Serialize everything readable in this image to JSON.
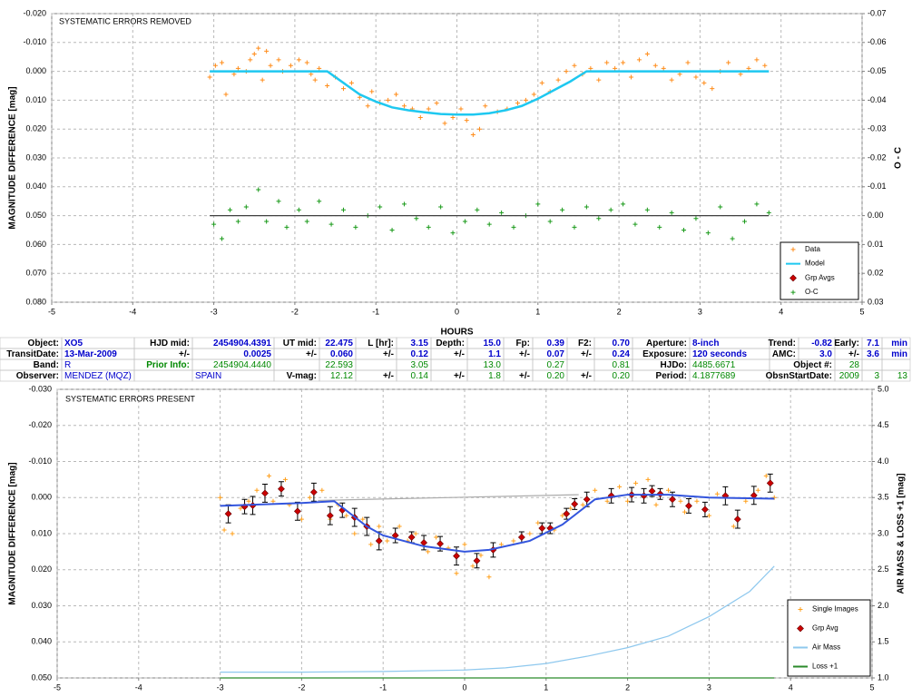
{
  "chart_data": [
    {
      "type": "scatter",
      "annotation": "SYSTEMATIC ERRORS REMOVED",
      "xlabel": "HOURS",
      "ylabel": "MAGNITUDE DIFFERENCE [mag]",
      "y2label": "O - C",
      "xlim": [
        -5,
        5
      ],
      "xticks": [
        -5,
        -4,
        -3,
        -2,
        -1,
        0,
        1,
        2,
        3,
        4,
        5
      ],
      "ylim": [
        -0.02,
        0.08
      ],
      "y_reversed": true,
      "yticks": [
        {
          "value": -0.02,
          "label": "-0.020"
        },
        {
          "value": -0.01,
          "label": "-0.010"
        },
        {
          "value": 0,
          "label": "0.000"
        },
        {
          "value": 0.01,
          "label": "0.010"
        },
        {
          "value": 0.02,
          "label": "0.020"
        },
        {
          "value": 0.03,
          "label": "0.030"
        },
        {
          "value": 0.04,
          "label": "0.040"
        },
        {
          "value": 0.05,
          "label": "0.050"
        },
        {
          "value": 0.06,
          "label": "0.060"
        },
        {
          "value": 0.07,
          "label": "0.070"
        },
        {
          "value": 0.08,
          "label": "0.080"
        }
      ],
      "y2lim": [
        -0.07,
        0.03
      ],
      "y2_reversed": true,
      "y2ticks": [
        -0.07,
        -0.06,
        -0.05,
        -0.04,
        -0.03,
        -0.02,
        -0.01,
        {
          "value": 0,
          "label": "0.00"
        },
        0.01,
        0.02,
        0.03
      ],
      "grid": true,
      "legend": "lower right",
      "series": [
        {
          "name": "Data",
          "color": "#ff8c1a",
          "marker": "plus",
          "x": [
            -3.05,
            -2.98,
            -2.9,
            -2.85,
            -2.75,
            -2.7,
            -2.6,
            -2.55,
            -2.5,
            -2.45,
            -2.4,
            -2.35,
            -2.3,
            -2.2,
            -2.15,
            -2.05,
            -1.95,
            -1.85,
            -1.8,
            -1.75,
            -1.7,
            -1.6,
            -1.5,
            -1.4,
            -1.3,
            -1.2,
            -1.1,
            -1.05,
            -0.95,
            -0.85,
            -0.75,
            -0.65,
            -0.55,
            -0.45,
            -0.35,
            -0.25,
            -0.15,
            -0.05,
            0.05,
            0.12,
            0.2,
            0.28,
            0.35,
            0.5,
            0.62,
            0.75,
            0.85,
            0.95,
            1.05,
            1.15,
            1.25,
            1.35,
            1.45,
            1.55,
            1.65,
            1.75,
            1.85,
            1.95,
            2.05,
            2.15,
            2.25,
            2.35,
            2.45,
            2.55,
            2.65,
            2.75,
            2.85,
            2.95,
            3.05,
            3.15,
            3.25,
            3.35,
            3.5,
            3.6,
            3.7,
            3.8
          ],
          "values": [
            0.002,
            -0.002,
            -0.003,
            0.008,
            0.001,
            -0.001,
            0.0,
            -0.004,
            -0.006,
            -0.008,
            0.003,
            -0.007,
            -0.002,
            -0.004,
            0.0,
            -0.002,
            -0.004,
            -0.003,
            0.001,
            0.003,
            -0.001,
            0.005,
            0.002,
            0.006,
            0.004,
            0.009,
            0.012,
            0.007,
            0.011,
            0.01,
            0.008,
            0.012,
            0.013,
            0.016,
            0.013,
            0.011,
            0.018,
            0.016,
            0.013,
            0.017,
            0.022,
            0.02,
            0.012,
            0.014,
            0.013,
            0.011,
            0.01,
            0.008,
            0.004,
            0.007,
            0.003,
            0.0,
            -0.002,
            0.001,
            -0.001,
            0.003,
            -0.003,
            -0.001,
            -0.003,
            0.002,
            -0.004,
            -0.006,
            -0.002,
            -0.001,
            0.003,
            0.001,
            -0.003,
            0.002,
            0.004,
            0.006,
            0.0,
            -0.003,
            0.001,
            -0.001,
            -0.004,
            -0.002
          ]
        },
        {
          "name": "Model",
          "color": "#1ec8f0",
          "marker": "line",
          "x": [
            -3.05,
            -1.6,
            -1.4,
            -1.2,
            -1.0,
            -0.8,
            -0.6,
            -0.4,
            -0.2,
            0.0,
            0.2,
            0.4,
            0.6,
            0.8,
            1.0,
            1.2,
            1.4,
            1.6,
            3.85
          ],
          "values": [
            0,
            0,
            0.004,
            0.008,
            0.0105,
            0.0125,
            0.0135,
            0.0142,
            0.0148,
            0.015,
            0.015,
            0.0145,
            0.0135,
            0.012,
            0.0095,
            0.0065,
            0.0035,
            0,
            0
          ]
        },
        {
          "name": "Grp Avgs",
          "color": "#cc0000",
          "marker": "diamond",
          "x": [],
          "values": []
        },
        {
          "name": "O-C",
          "color": "#1a9a1a",
          "marker": "plus",
          "axis": "y2",
          "x": [
            -3.0,
            -2.9,
            -2.8,
            -2.7,
            -2.6,
            -2.45,
            -2.35,
            -2.2,
            -2.1,
            -1.95,
            -1.85,
            -1.7,
            -1.55,
            -1.4,
            -1.25,
            -1.1,
            -0.95,
            -0.8,
            -0.65,
            -0.5,
            -0.35,
            -0.2,
            -0.05,
            0.1,
            0.25,
            0.4,
            0.55,
            0.7,
            0.85,
            1.0,
            1.15,
            1.3,
            1.45,
            1.6,
            1.75,
            1.9,
            2.05,
            2.2,
            2.35,
            2.5,
            2.65,
            2.8,
            2.95,
            3.1,
            3.25,
            3.4,
            3.55,
            3.7,
            3.85
          ],
          "values": [
            0.003,
            0.008,
            -0.002,
            0.002,
            -0.003,
            -0.009,
            0.002,
            -0.005,
            0.004,
            -0.002,
            0.002,
            -0.005,
            0.003,
            -0.002,
            0.004,
            0.0,
            -0.003,
            0.005,
            -0.004,
            0.001,
            0.004,
            -0.003,
            0.006,
            0.002,
            -0.002,
            0.003,
            -0.001,
            0.004,
            0.0,
            -0.004,
            0.002,
            -0.002,
            0.004,
            -0.003,
            0.001,
            -0.002,
            -0.004,
            0.003,
            -0.002,
            0.004,
            -0.001,
            0.005,
            0.001,
            0.006,
            -0.003,
            0.008,
            0.002,
            -0.004,
            -0.001
          ]
        },
        {
          "color": "#404040",
          "marker": "line",
          "axis": "y2",
          "x": [
            -3.05,
            3.85
          ],
          "values": [
            0,
            0
          ]
        }
      ]
    },
    {
      "type": "scatter",
      "annotation": "SYSTEMATIC ERRORS PRESENT",
      "ylabel": "MAGNITUDE DIFFERENCE [mag]",
      "y2label": "AIR MASS & LOSS +1 [mag]",
      "xlim": [
        -5,
        5
      ],
      "xticks": [
        -5,
        -4,
        -3,
        -2,
        -1,
        0,
        1,
        2,
        3,
        4,
        5
      ],
      "ylim": [
        -0.03,
        0.05
      ],
      "y_reversed": true,
      "yticks": [
        {
          "value": -0.03,
          "label": "-0.030"
        },
        {
          "value": -0.02,
          "label": "-0.020"
        },
        {
          "value": -0.01,
          "label": "-0.010"
        },
        {
          "value": 0,
          "label": "0.000"
        },
        {
          "value": 0.01,
          "label": "0.010"
        },
        {
          "value": 0.02,
          "label": "0.020"
        },
        {
          "value": 0.03,
          "label": "0.030"
        },
        {
          "value": 0.04,
          "label": "0.040"
        },
        {
          "value": 0.05,
          "label": "0.050"
        }
      ],
      "y2lim": [
        1,
        5
      ],
      "y2ticks": [
        {
          "value": 1,
          "label": "1.0"
        },
        1.5,
        {
          "value": 2,
          "label": "2.0"
        },
        2.5,
        {
          "value": 3,
          "label": "3.0"
        },
        3.5,
        {
          "value": 4,
          "label": "4.0"
        },
        4.5,
        {
          "value": 5,
          "label": "5.0"
        }
      ],
      "grid": true,
      "legend": "lower right",
      "series": [
        {
          "name": "Single Images",
          "color": "#ff9f1a",
          "marker": "plus",
          "x": [
            -3.0,
            -2.95,
            -2.85,
            -2.75,
            -2.65,
            -2.55,
            -2.4,
            -2.35,
            -2.2,
            -2.15,
            -2.0,
            -1.9,
            -1.75,
            -1.65,
            -1.55,
            -1.45,
            -1.35,
            -1.25,
            -1.15,
            -1.05,
            -0.95,
            -0.8,
            -0.7,
            -0.6,
            -0.45,
            -0.35,
            -0.2,
            -0.1,
            0.0,
            0.1,
            0.2,
            0.3,
            0.45,
            0.6,
            0.8,
            0.9,
            1.1,
            1.2,
            1.3,
            1.45,
            1.6,
            1.75,
            1.9,
            2.0,
            2.1,
            2.25,
            2.35,
            2.5,
            2.65,
            2.7,
            2.85,
            3.0,
            3.1,
            3.3,
            3.45,
            3.6,
            3.7,
            3.8
          ],
          "values": [
            0.0,
            0.009,
            0.01,
            0.003,
            0.001,
            -0.002,
            -0.006,
            0.001,
            -0.005,
            0.002,
            0.006,
            0.0,
            -0.002,
            0.006,
            0.002,
            0.005,
            0.01,
            0.006,
            0.013,
            0.008,
            0.012,
            0.008,
            0.012,
            0.01,
            0.015,
            0.011,
            0.014,
            0.021,
            0.013,
            0.019,
            0.016,
            0.022,
            0.013,
            0.012,
            0.01,
            0.007,
            0.009,
            0.005,
            0.003,
            0.002,
            -0.002,
            0.001,
            -0.003,
            0.001,
            -0.004,
            -0.005,
            0.002,
            -0.002,
            0.001,
            0.004,
            0.001,
            0.005,
            -0.001,
            0.008,
            0.001,
            -0.002,
            -0.006,
            0.0
          ]
        },
        {
          "name": "Grp Avg",
          "color": "#cc0000",
          "marker": "diamond",
          "x": [
            -2.9,
            -2.7,
            -2.6,
            -2.45,
            -2.25,
            -2.05,
            -1.85,
            -1.65,
            -1.5,
            -1.35,
            -1.2,
            -1.05,
            -0.85,
            -0.65,
            -0.5,
            -0.3,
            -0.1,
            0.15,
            0.35,
            0.7,
            0.95,
            1.05,
            1.25,
            1.35,
            1.5,
            1.8,
            2.05,
            2.2,
            2.3,
            2.4,
            2.55,
            2.75,
            2.95,
            3.2,
            3.35,
            3.55,
            3.75
          ],
          "values": [
            0.0045,
            0.0025,
            0.0022,
            -0.0012,
            -0.0024,
            0.0038,
            -0.0015,
            0.005,
            0.0035,
            0.0055,
            0.008,
            0.012,
            0.0105,
            0.011,
            0.0125,
            0.0128,
            0.0162,
            0.0175,
            0.0145,
            0.011,
            0.0085,
            0.0085,
            0.0045,
            0.0018,
            0.0005,
            -0.0005,
            -0.0008,
            -0.0005,
            -0.0018,
            -0.001,
            0.0005,
            0.0023,
            0.0033,
            -0.0005,
            0.006,
            -0.0006,
            -0.004
          ],
          "errors": [
            0.0025,
            0.002,
            0.0025,
            0.0025,
            0.002,
            0.0025,
            0.0025,
            0.0025,
            0.002,
            0.0025,
            0.0025,
            0.0025,
            0.002,
            0.0015,
            0.002,
            0.002,
            0.0025,
            0.002,
            0.002,
            0.0015,
            0.0015,
            0.0015,
            0.0015,
            0.0015,
            0.002,
            0.002,
            0.002,
            0.002,
            0.0015,
            0.0015,
            0.002,
            0.002,
            0.002,
            0.0025,
            0.0025,
            0.0025,
            0.0025
          ]
        },
        {
          "name": "Air Mass",
          "color": "#8ec8ee",
          "marker": "line",
          "axis": "y2",
          "x": [
            -3.0,
            -2.0,
            -1.0,
            0.0,
            0.5,
            1.0,
            1.5,
            2.0,
            2.5,
            3.0,
            3.5,
            3.8
          ],
          "values": [
            1.08,
            1.08,
            1.09,
            1.11,
            1.14,
            1.2,
            1.3,
            1.42,
            1.58,
            1.85,
            2.2,
            2.55
          ]
        },
        {
          "name": "Loss +1",
          "color": "#2a8a2a",
          "marker": "line",
          "axis": "y2",
          "x": [
            -3.0,
            3.8
          ],
          "values": [
            1,
            1
          ]
        },
        {
          "color": "#aaaaaa",
          "marker": "line",
          "x": [
            -1.8,
            1.4
          ],
          "values": [
            0.0008,
            -0.0008
          ]
        },
        {
          "color": "#3355dd",
          "marker": "line",
          "x": [
            -3.0,
            -2.0,
            -1.6,
            -1.2,
            -1.0,
            -0.5,
            0.0,
            0.3,
            0.8,
            1.2,
            1.6,
            2.0,
            2.5,
            3.0,
            3.8
          ],
          "values": [
            0.0023,
            0.0015,
            0.001,
            0.008,
            0.0105,
            0.0135,
            0.015,
            0.0145,
            0.012,
            0.0075,
            0.0005,
            -0.0008,
            -0.0008,
            0.0,
            0.0003
          ]
        }
      ]
    }
  ],
  "table": {
    "rows": [
      [
        "Object:",
        "XO5",
        "HJD mid:",
        "2454904.4391",
        "UT mid:",
        "22.475",
        "L [hr]:",
        "3.15",
        "Depth:",
        "15.0",
        "Fp:",
        "0.39",
        "F2:",
        "0.70",
        "Aperture:",
        "8-inch",
        "Trend:",
        "-0.82",
        "Early:",
        "7.1",
        "min"
      ],
      [
        "TransitDate:",
        "13-Mar-2009",
        "+/-",
        "0.0025",
        "+/-",
        "0.060",
        "+/-",
        "0.12",
        "+/-",
        "1.1",
        "+/-",
        "0.07",
        "+/-",
        "0.24",
        "Exposure:",
        "120 seconds",
        "AMC:",
        "3.0",
        "+/-",
        "3.6",
        "min"
      ],
      [
        "Band:",
        "R",
        "Prior Info:",
        "2454904.4440",
        null,
        "22.593",
        null,
        "3.05",
        null,
        "13.0",
        null,
        "0.27",
        null,
        "0.81",
        "HJDo:",
        "4485.6671",
        null,
        "Object #:",
        "28",
        null,
        null
      ],
      [
        "Observer:",
        "MENDEZ (MQZ)",
        null,
        "SPAIN",
        "V-mag:",
        "12.12",
        "+/-",
        "0.14",
        "+/-",
        "1.8",
        "+/-",
        "0.20",
        "+/-",
        "0.20",
        "Period:",
        "4.1877689",
        null,
        "ObsnStartDate:",
        "2009",
        "3",
        "13"
      ]
    ]
  }
}
